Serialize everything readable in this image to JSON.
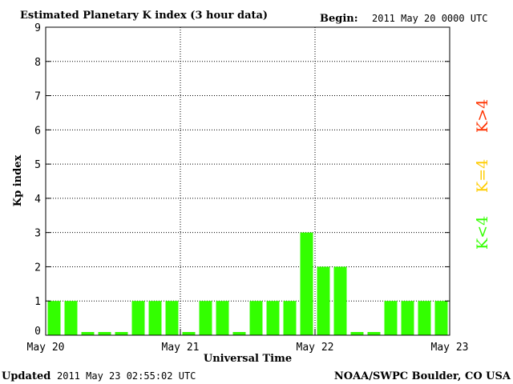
{
  "header": {
    "title": "Estimated Planetary K index (3 hour data)",
    "begin_label": "Begin:",
    "begin_value": "2011 May 20 0000 UTC"
  },
  "footer": {
    "updated_label": "Updated",
    "updated_value": "2011 May 23 02:55:02 UTC",
    "credit": "NOAA/SWPC Boulder, CO USA"
  },
  "legend": {
    "high": "K>4",
    "equal": "K=4",
    "low": "K<4",
    "colors": {
      "high": "#ff3300",
      "equal": "#ffcc00",
      "low": "#33ff00"
    }
  },
  "chart_data": {
    "type": "bar",
    "ylabel": "Kp index",
    "xlabel": "Universal Time",
    "ylim": [
      0,
      9
    ],
    "yticks": [
      "0",
      "1",
      "2",
      "3",
      "4",
      "5",
      "6",
      "7",
      "8",
      "9"
    ],
    "xticks": [
      "May 20",
      "May 21",
      "May 22",
      "May 23"
    ],
    "interval_hours": 3,
    "values": [
      1,
      1,
      0,
      0,
      0,
      1,
      1,
      1,
      0,
      1,
      1,
      0,
      1,
      1,
      1,
      3,
      2,
      2,
      0,
      0,
      1,
      1,
      1,
      1
    ],
    "bar_color": "#33ff00",
    "grid": "dotted"
  }
}
